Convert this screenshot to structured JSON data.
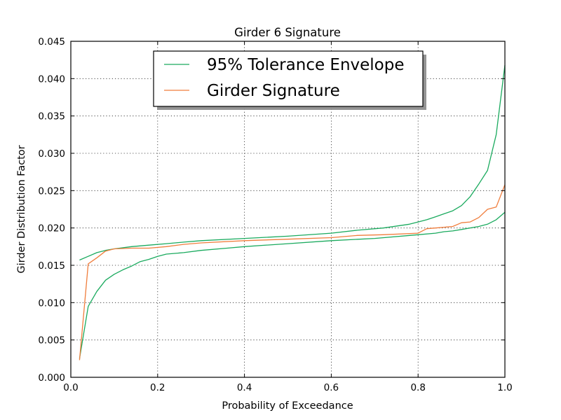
{
  "chart_data": {
    "type": "line",
    "title": "Girder 6 Signature",
    "xlabel": "Probability of Exceedance",
    "ylabel": "Girder Distribution Factor",
    "xlim": [
      0.0,
      1.0
    ],
    "ylim": [
      0.0,
      0.045
    ],
    "x_ticks": [
      0.0,
      0.2,
      0.4,
      0.6,
      0.8,
      1.0
    ],
    "x_tick_labels": [
      "0.0",
      "0.2",
      "0.4",
      "0.6",
      "0.8",
      "1.0"
    ],
    "y_ticks": [
      0.0,
      0.005,
      0.01,
      0.015,
      0.02,
      0.025,
      0.03,
      0.035,
      0.04,
      0.045
    ],
    "y_tick_labels": [
      "0.000",
      "0.005",
      "0.010",
      "0.015",
      "0.020",
      "0.025",
      "0.030",
      "0.035",
      "0.040",
      "0.045"
    ],
    "grid": true,
    "legend_position": "top-center",
    "series": [
      {
        "name": "95% Tolerance Envelope",
        "color": "#1aaa5e",
        "role": "upper",
        "x": [
          0.02,
          0.04,
          0.06,
          0.08,
          0.1,
          0.14,
          0.18,
          0.22,
          0.26,
          0.3,
          0.4,
          0.5,
          0.6,
          0.66,
          0.72,
          0.78,
          0.8,
          0.82,
          0.84,
          0.86,
          0.88,
          0.9,
          0.92,
          0.94,
          0.96,
          0.98,
          1.0
        ],
        "values": [
          0.0157,
          0.0162,
          0.0167,
          0.017,
          0.0172,
          0.0175,
          0.0177,
          0.0179,
          0.0181,
          0.0183,
          0.0186,
          0.0189,
          0.0193,
          0.0197,
          0.02,
          0.0205,
          0.0208,
          0.0211,
          0.0215,
          0.0219,
          0.0223,
          0.023,
          0.0242,
          0.0259,
          0.0277,
          0.0325,
          0.0418
        ]
      },
      {
        "name": "",
        "color": "#1aaa5e",
        "role": "lower",
        "x": [
          0.02,
          0.04,
          0.06,
          0.08,
          0.1,
          0.12,
          0.14,
          0.16,
          0.18,
          0.2,
          0.22,
          0.26,
          0.3,
          0.36,
          0.4,
          0.5,
          0.6,
          0.7,
          0.8,
          0.84,
          0.86,
          0.88,
          0.9,
          0.94,
          0.96,
          0.98,
          1.0
        ],
        "values": [
          0.0025,
          0.0095,
          0.0115,
          0.013,
          0.0138,
          0.0144,
          0.0149,
          0.0155,
          0.0158,
          0.0162,
          0.0165,
          0.0167,
          0.017,
          0.0173,
          0.0175,
          0.0179,
          0.0183,
          0.0186,
          0.0191,
          0.0193,
          0.0195,
          0.0196,
          0.0198,
          0.0202,
          0.0205,
          0.0211,
          0.0221
        ]
      },
      {
        "name": "Girder Signature",
        "color": "#f07d3c",
        "role": "signature",
        "x": [
          0.02,
          0.04,
          0.06,
          0.08,
          0.1,
          0.14,
          0.18,
          0.22,
          0.26,
          0.3,
          0.4,
          0.5,
          0.6,
          0.66,
          0.72,
          0.8,
          0.82,
          0.84,
          0.86,
          0.88,
          0.9,
          0.92,
          0.94,
          0.96,
          0.98,
          1.0
        ],
        "values": [
          0.0023,
          0.0152,
          0.016,
          0.0169,
          0.0172,
          0.0173,
          0.0173,
          0.0175,
          0.0178,
          0.018,
          0.0183,
          0.0185,
          0.0187,
          0.019,
          0.0191,
          0.0193,
          0.0199,
          0.02,
          0.0201,
          0.0202,
          0.0207,
          0.0208,
          0.0214,
          0.0225,
          0.0228,
          0.0258
        ]
      }
    ]
  }
}
